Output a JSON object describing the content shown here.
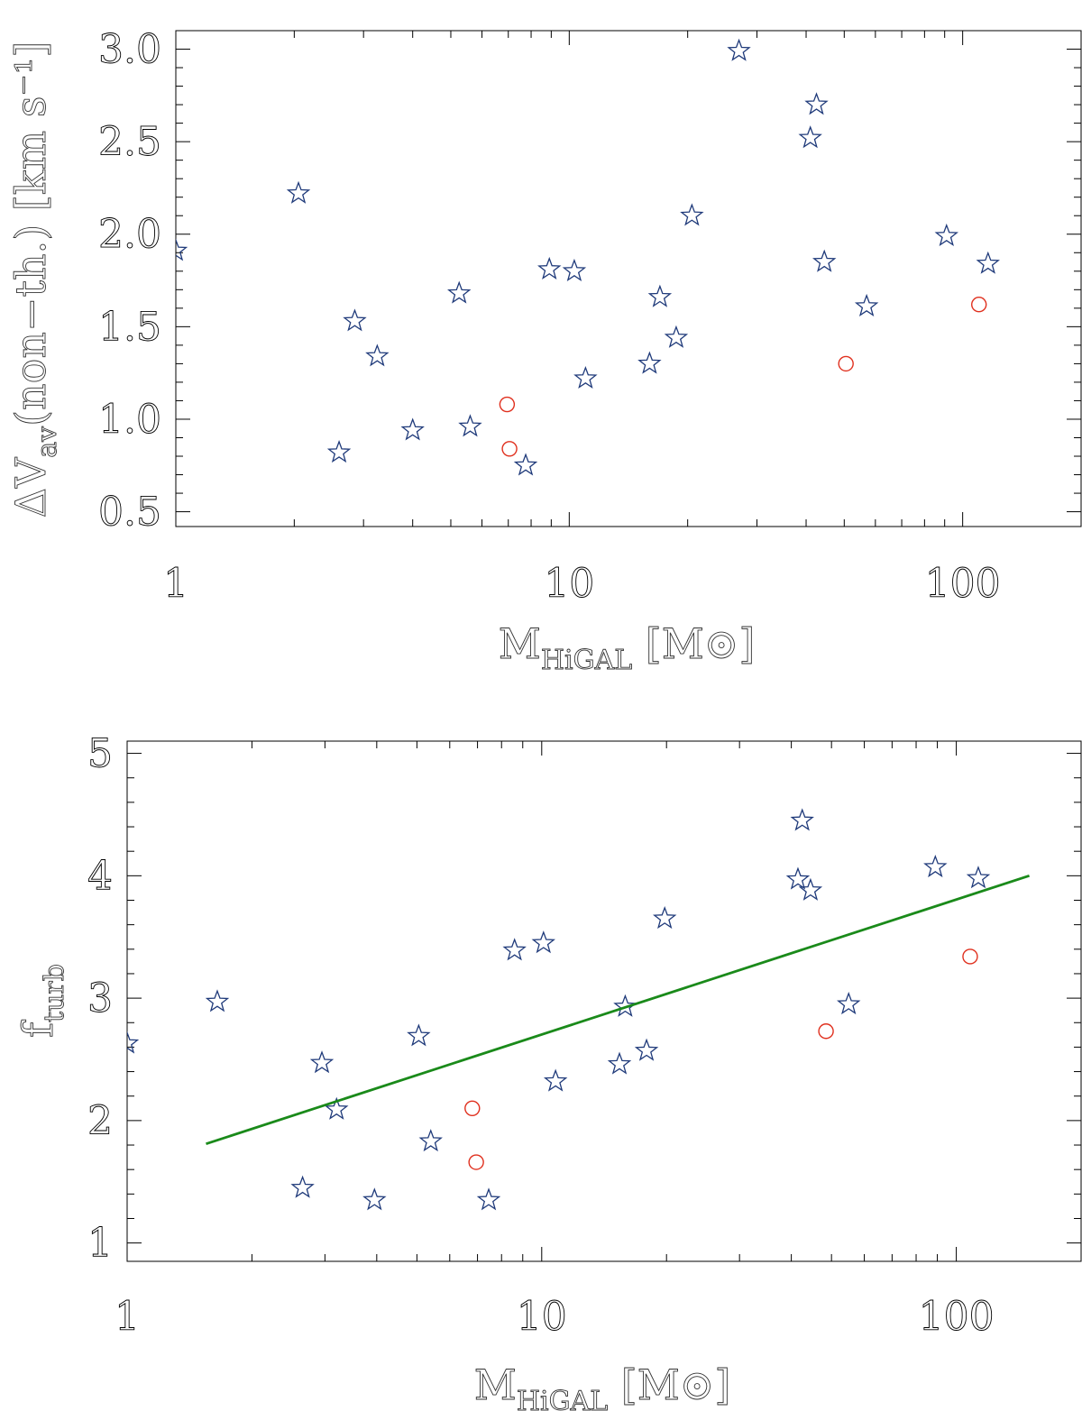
{
  "chart_data": [
    {
      "type": "scatter",
      "xscale": "log",
      "xlim": [
        1,
        200
      ],
      "ylim": [
        0.42,
        3.1
      ],
      "xticks": [
        1,
        10,
        100
      ],
      "xtick_labels": [
        "1",
        "10",
        "100"
      ],
      "yticks": [
        0.5,
        1.0,
        1.5,
        2.0,
        2.5,
        3.0
      ],
      "ytick_labels": [
        "0.5",
        "1.0",
        "1.5",
        "2.0",
        "2.5",
        "3.0"
      ],
      "xlabel": {
        "main": "M",
        "sub": "HiGAL",
        "rest": " [M⊙]"
      },
      "ylabel": {
        "main": "ΔV",
        "sub": "av",
        "rest": "(non−th.) [km s⁻¹]"
      },
      "series": [
        {
          "marker": "star",
          "color": "#1f3a7a",
          "x": [
            1.0,
            2.05,
            2.6,
            2.85,
            3.25,
            4.0,
            5.25,
            5.6,
            7.75,
            8.9,
            10.3,
            11.0,
            16.0,
            17.0,
            18.7,
            20.5,
            27.0,
            41.0,
            42.5,
            44.5,
            57.0,
            91.0,
            116.0
          ],
          "y": [
            1.91,
            2.22,
            0.82,
            1.53,
            1.34,
            0.94,
            1.68,
            0.96,
            0.75,
            1.81,
            1.8,
            1.22,
            1.3,
            1.66,
            1.44,
            2.1,
            2.99,
            2.52,
            2.7,
            1.85,
            1.61,
            1.99,
            1.84
          ]
        },
        {
          "marker": "circle",
          "color": "#e0301e",
          "x": [
            6.95,
            7.05,
            50.5,
            110.0
          ],
          "y": [
            1.08,
            0.84,
            1.3,
            1.62
          ]
        }
      ]
    },
    {
      "type": "scatter",
      "xscale": "log",
      "xlim": [
        1,
        200
      ],
      "ylim": [
        0.85,
        5.1
      ],
      "xticks": [
        1,
        10,
        100
      ],
      "xtick_labels": [
        "1",
        "10",
        "100"
      ],
      "yticks": [
        1,
        2,
        3,
        4,
        5
      ],
      "ytick_labels": [
        "1",
        "2",
        "3",
        "4",
        "5"
      ],
      "xlabel": {
        "main": "M",
        "sub": "HiGAL",
        "rest": " [M⊙]"
      },
      "ylabel": {
        "main": "f",
        "sub": "turb",
        "rest": ""
      },
      "series": [
        {
          "marker": "star",
          "color": "#1f3a7a",
          "x": [
            1.0,
            1.65,
            2.65,
            2.95,
            3.2,
            3.95,
            5.05,
            5.4,
            7.45,
            8.6,
            10.1,
            10.8,
            15.4,
            15.9,
            17.9,
            19.8,
            41.5,
            42.5,
            44.5,
            55.0,
            89.0,
            113.0
          ],
          "y": [
            2.63,
            2.97,
            1.45,
            2.47,
            2.09,
            1.35,
            2.69,
            1.83,
            1.35,
            3.39,
            3.45,
            2.32,
            2.46,
            2.93,
            2.57,
            3.65,
            3.97,
            4.45,
            3.88,
            2.95,
            4.07,
            3.98
          ]
        },
        {
          "marker": "circle",
          "color": "#e0301e",
          "x": [
            6.8,
            6.95,
            48.5,
            108.0
          ],
          "y": [
            2.1,
            1.66,
            2.73,
            3.34
          ]
        },
        {
          "marker": "line",
          "color": "#1a8a1a",
          "x": [
            1.55,
            150.0
          ],
          "y": [
            1.81,
            4.0
          ]
        }
      ]
    }
  ]
}
